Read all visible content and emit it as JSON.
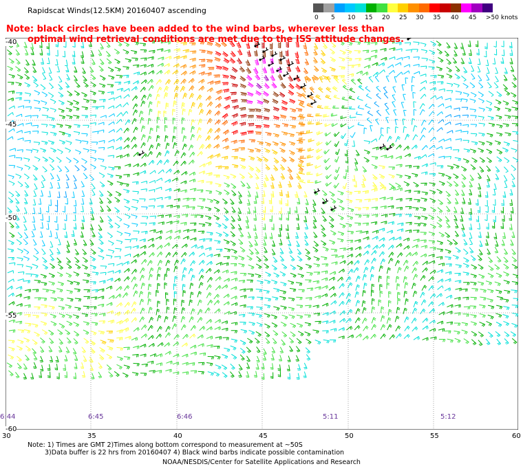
{
  "title": "Rapidscat Winds(12.5KM) 20160407 ascending",
  "note": {
    "line1": "Note: black circles have been added to the wind barbs, wherever less than",
    "line2": "optimal wind retrieval conditions are met due to the ISS attitude changes."
  },
  "legend": {
    "colors": [
      "#555555",
      "#a0a0a0",
      "#00a0ff",
      "#00c8ff",
      "#00e0d8",
      "#00b000",
      "#40e040",
      "#ffff40",
      "#ffd000",
      "#ff9000",
      "#ff6a00",
      "#ff0000",
      "#c80000",
      "#8b3000",
      "#ff00ff",
      "#a000c0",
      "#400080"
    ],
    "labels": [
      "0",
      "5",
      "10",
      "15",
      "20",
      "25",
      "30",
      "35",
      "40",
      "45",
      ">50 knots"
    ]
  },
  "map": {
    "latitudes": [
      "-40",
      "-45",
      "-50",
      "-55",
      "-60"
    ],
    "longitudes": [
      "30",
      "35",
      "40",
      "45",
      "50",
      "55",
      "60"
    ],
    "times": [
      "6:44",
      "6:45",
      "6:46",
      "5:11",
      "5:12"
    ]
  },
  "footnote": {
    "line1": "Note: 1) Times are GMT 2)Times along bottom correspond to measurement at ~50S",
    "line2": "3)Data buffer is 22 hrs from 20160407 4) Black wind barbs indicate possible contamination"
  },
  "credit": "NOAA/NESDIS/Center for Satellite Applications and Research"
}
